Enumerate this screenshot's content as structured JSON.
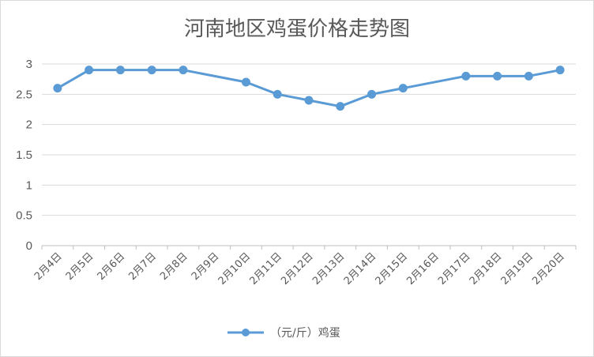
{
  "chart_data": {
    "type": "line",
    "title": "河南地区鸡蛋价格走势图",
    "xlabel": "",
    "ylabel": "",
    "ylim": [
      0,
      3
    ],
    "yticks": [
      "0",
      "0.5",
      "1",
      "1.5",
      "2",
      "2.5",
      "3"
    ],
    "grid": true,
    "legend_position": "bottom",
    "categories": [
      "2月4日",
      "2月5日",
      "2月6日",
      "2月7日",
      "2月8日",
      "2月9日",
      "2月10日",
      "2月11日",
      "2月12日",
      "2月13日",
      "2月14日",
      "2月15日",
      "2月16日",
      "2月17日",
      "2月18日",
      "2月19日",
      "2月20日"
    ],
    "series": [
      {
        "name": "（元/斤）鸡蛋",
        "color": "#5b9bd5",
        "values": [
          2.6,
          2.9,
          2.9,
          2.9,
          2.9,
          null,
          2.7,
          2.5,
          2.4,
          2.3,
          2.5,
          2.6,
          null,
          2.8,
          2.8,
          2.8,
          2.9
        ]
      }
    ]
  }
}
